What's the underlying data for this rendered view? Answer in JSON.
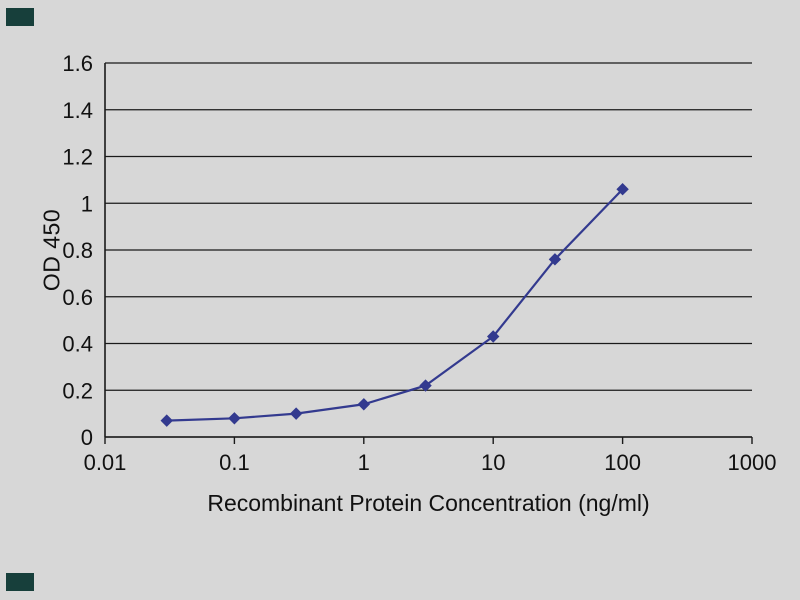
{
  "page": {
    "background_color": "#d7d7d7",
    "corner_mark_color": "#173f3b"
  },
  "chart_data": {
    "type": "line",
    "x_scale": "log",
    "x": [
      0.03,
      0.1,
      0.3,
      1,
      3,
      10,
      30,
      100
    ],
    "series": [
      {
        "name": "OD 450",
        "values": [
          0.07,
          0.08,
          0.1,
          0.14,
          0.22,
          0.43,
          0.76,
          1.06
        ],
        "color": "#333a8f",
        "marker": "diamond"
      }
    ],
    "title": "",
    "xlabel": "Recombinant Protein Concentration (ng/ml)",
    "ylabel": "OD 450",
    "xlim": [
      0.01,
      1000
    ],
    "ylim": [
      0,
      1.6
    ],
    "x_ticks": [
      0.01,
      0.1,
      1,
      10,
      100,
      1000
    ],
    "x_tick_labels": [
      "0.01",
      "0.1",
      "1",
      "10",
      "100",
      "1000"
    ],
    "y_ticks": [
      0,
      0.2,
      0.4,
      0.6,
      0.8,
      1,
      1.2,
      1.4,
      1.6
    ],
    "y_tick_labels": [
      "0",
      "0.2",
      "0.4",
      "0.6",
      "0.8",
      "1",
      "1.2",
      "1.4",
      "1.6"
    ],
    "grid": "horizontal",
    "grid_color": "#1a1a1a",
    "axis_color": "#1a1a1a",
    "legend": "none"
  }
}
